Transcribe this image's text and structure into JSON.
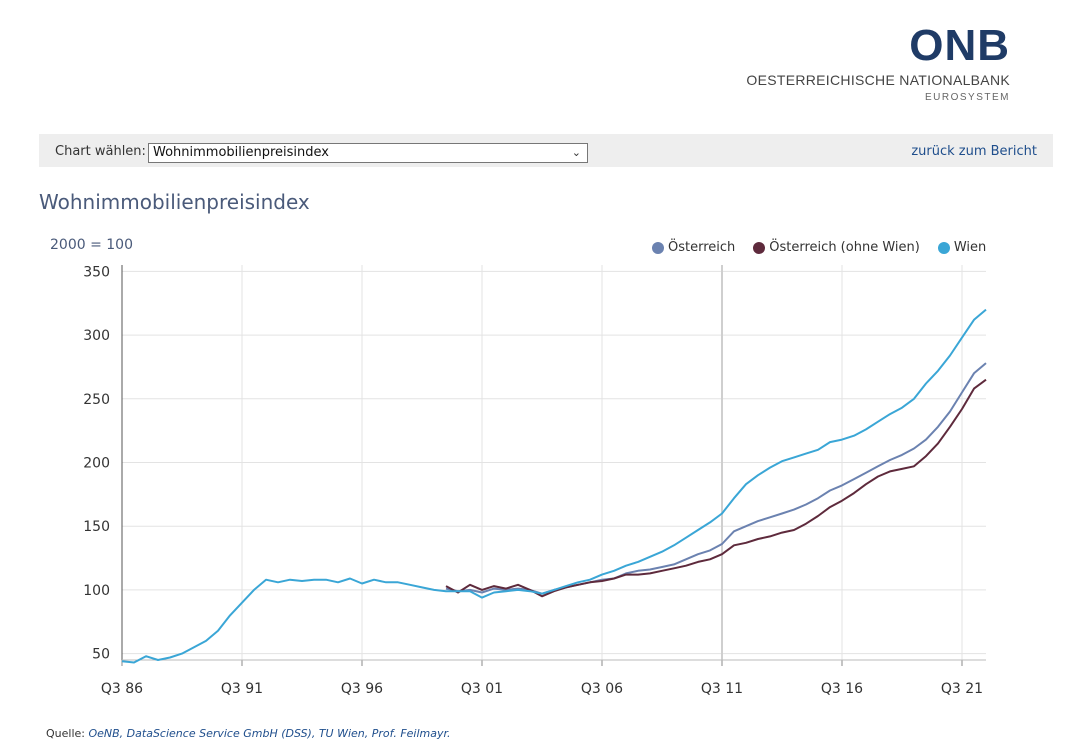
{
  "logo": {
    "mark": "ONB",
    "name": "OESTERREICHISCHE NATIONALBANK",
    "sub": "EUROSYSTEM"
  },
  "toolbar": {
    "select_label": "Chart wählen:",
    "selected_chart": "Wohnimmobilienpreisindex",
    "back_link": "zurück zum Bericht"
  },
  "chart_data": {
    "type": "line",
    "title": "Wohnimmobilienpreisindex",
    "unit_label": "2000 = 100",
    "ylim": [
      45,
      355
    ],
    "y_ticks": [
      50,
      100,
      150,
      200,
      250,
      300,
      350
    ],
    "x_range": [
      1986.5,
      2022.5
    ],
    "x_ticks": [
      {
        "label": "Q3 86",
        "value": 1986.5
      },
      {
        "label": "Q3 91",
        "value": 1991.5
      },
      {
        "label": "Q3 96",
        "value": 1996.5
      },
      {
        "label": "Q3 01",
        "value": 2001.5
      },
      {
        "label": "Q3 06",
        "value": 2006.5
      },
      {
        "label": "Q3 11",
        "value": 2011.5
      },
      {
        "label": "Q3 16",
        "value": 2016.5
      },
      {
        "label": "Q3 21",
        "value": 2021.5
      }
    ],
    "grid": true,
    "legend_position": "top-right",
    "series": [
      {
        "name": "Österreich",
        "color": "#6b82b0",
        "points": [
          [
            2000.0,
            101
          ],
          [
            2000.5,
            99
          ],
          [
            2001.0,
            100
          ],
          [
            2001.5,
            98
          ],
          [
            2002.0,
            101
          ],
          [
            2002.5,
            100
          ],
          [
            2003.0,
            101
          ],
          [
            2003.5,
            100
          ],
          [
            2004.0,
            97
          ],
          [
            2004.5,
            100
          ],
          [
            2005.0,
            102
          ],
          [
            2005.5,
            104
          ],
          [
            2006.0,
            106
          ],
          [
            2006.5,
            108
          ],
          [
            2007.0,
            109
          ],
          [
            2007.5,
            113
          ],
          [
            2008.0,
            115
          ],
          [
            2008.5,
            116
          ],
          [
            2009.0,
            118
          ],
          [
            2009.5,
            120
          ],
          [
            2010.0,
            124
          ],
          [
            2010.5,
            128
          ],
          [
            2011.0,
            131
          ],
          [
            2011.5,
            136
          ],
          [
            2012.0,
            146
          ],
          [
            2012.5,
            150
          ],
          [
            2013.0,
            154
          ],
          [
            2013.5,
            157
          ],
          [
            2014.0,
            160
          ],
          [
            2014.5,
            163
          ],
          [
            2015.0,
            167
          ],
          [
            2015.5,
            172
          ],
          [
            2016.0,
            178
          ],
          [
            2016.5,
            182
          ],
          [
            2017.0,
            187
          ],
          [
            2017.5,
            192
          ],
          [
            2018.0,
            197
          ],
          [
            2018.5,
            202
          ],
          [
            2019.0,
            206
          ],
          [
            2019.5,
            211
          ],
          [
            2020.0,
            218
          ],
          [
            2020.5,
            228
          ],
          [
            2021.0,
            240
          ],
          [
            2021.5,
            255
          ],
          [
            2022.0,
            270
          ],
          [
            2022.5,
            278
          ]
        ]
      },
      {
        "name": "Österreich (ohne Wien)",
        "color": "#5e2a3c",
        "points": [
          [
            2000.0,
            103
          ],
          [
            2000.5,
            98
          ],
          [
            2001.0,
            104
          ],
          [
            2001.5,
            100
          ],
          [
            2002.0,
            103
          ],
          [
            2002.5,
            101
          ],
          [
            2003.0,
            104
          ],
          [
            2003.5,
            100
          ],
          [
            2004.0,
            95
          ],
          [
            2004.5,
            99
          ],
          [
            2005.0,
            102
          ],
          [
            2005.5,
            104
          ],
          [
            2006.0,
            106
          ],
          [
            2006.5,
            107
          ],
          [
            2007.0,
            109
          ],
          [
            2007.5,
            112
          ],
          [
            2008.0,
            112
          ],
          [
            2008.5,
            113
          ],
          [
            2009.0,
            115
          ],
          [
            2009.5,
            117
          ],
          [
            2010.0,
            119
          ],
          [
            2010.5,
            122
          ],
          [
            2011.0,
            124
          ],
          [
            2011.5,
            128
          ],
          [
            2012.0,
            135
          ],
          [
            2012.5,
            137
          ],
          [
            2013.0,
            140
          ],
          [
            2013.5,
            142
          ],
          [
            2014.0,
            145
          ],
          [
            2014.5,
            147
          ],
          [
            2015.0,
            152
          ],
          [
            2015.5,
            158
          ],
          [
            2016.0,
            165
          ],
          [
            2016.5,
            170
          ],
          [
            2017.0,
            176
          ],
          [
            2017.5,
            183
          ],
          [
            2018.0,
            189
          ],
          [
            2018.5,
            193
          ],
          [
            2019.0,
            195
          ],
          [
            2019.5,
            197
          ],
          [
            2020.0,
            205
          ],
          [
            2020.5,
            215
          ],
          [
            2021.0,
            228
          ],
          [
            2021.5,
            242
          ],
          [
            2022.0,
            258
          ],
          [
            2022.5,
            265
          ]
        ]
      },
      {
        "name": "Wien",
        "color": "#3aa6d6",
        "points": [
          [
            1986.5,
            44
          ],
          [
            1987.0,
            43
          ],
          [
            1987.5,
            48
          ],
          [
            1988.0,
            45
          ],
          [
            1988.5,
            47
          ],
          [
            1989.0,
            50
          ],
          [
            1989.5,
            55
          ],
          [
            1990.0,
            60
          ],
          [
            1990.5,
            68
          ],
          [
            1991.0,
            80
          ],
          [
            1991.5,
            90
          ],
          [
            1992.0,
            100
          ],
          [
            1992.5,
            108
          ],
          [
            1993.0,
            106
          ],
          [
            1993.5,
            108
          ],
          [
            1994.0,
            107
          ],
          [
            1994.5,
            108
          ],
          [
            1995.0,
            108
          ],
          [
            1995.5,
            106
          ],
          [
            1996.0,
            109
          ],
          [
            1996.5,
            105
          ],
          [
            1997.0,
            108
          ],
          [
            1997.5,
            106
          ],
          [
            1998.0,
            106
          ],
          [
            1998.5,
            104
          ],
          [
            1999.0,
            102
          ],
          [
            1999.5,
            100
          ],
          [
            2000.0,
            99
          ],
          [
            2000.5,
            99
          ],
          [
            2001.0,
            99
          ],
          [
            2001.5,
            94
          ],
          [
            2002.0,
            98
          ],
          [
            2002.5,
            99
          ],
          [
            2003.0,
            100
          ],
          [
            2003.5,
            99
          ],
          [
            2004.0,
            97
          ],
          [
            2004.5,
            100
          ],
          [
            2005.0,
            103
          ],
          [
            2005.5,
            106
          ],
          [
            2006.0,
            108
          ],
          [
            2006.5,
            112
          ],
          [
            2007.0,
            115
          ],
          [
            2007.5,
            119
          ],
          [
            2008.0,
            122
          ],
          [
            2008.5,
            126
          ],
          [
            2009.0,
            130
          ],
          [
            2009.5,
            135
          ],
          [
            2010.0,
            141
          ],
          [
            2010.5,
            147
          ],
          [
            2011.0,
            153
          ],
          [
            2011.5,
            160
          ],
          [
            2012.0,
            172
          ],
          [
            2012.5,
            183
          ],
          [
            2013.0,
            190
          ],
          [
            2013.5,
            196
          ],
          [
            2014.0,
            201
          ],
          [
            2014.5,
            204
          ],
          [
            2015.0,
            207
          ],
          [
            2015.5,
            210
          ],
          [
            2016.0,
            216
          ],
          [
            2016.5,
            218
          ],
          [
            2017.0,
            221
          ],
          [
            2017.5,
            226
          ],
          [
            2018.0,
            232
          ],
          [
            2018.5,
            238
          ],
          [
            2019.0,
            243
          ],
          [
            2019.5,
            250
          ],
          [
            2020.0,
            262
          ],
          [
            2020.5,
            272
          ],
          [
            2021.0,
            284
          ],
          [
            2021.5,
            298
          ],
          [
            2022.0,
            312
          ],
          [
            2022.5,
            320
          ]
        ]
      }
    ]
  },
  "source": {
    "label": "Quelle:",
    "text": "OeNB, DataScience Service GmbH (DSS), TU Wien, Prof. Feilmayr."
  }
}
